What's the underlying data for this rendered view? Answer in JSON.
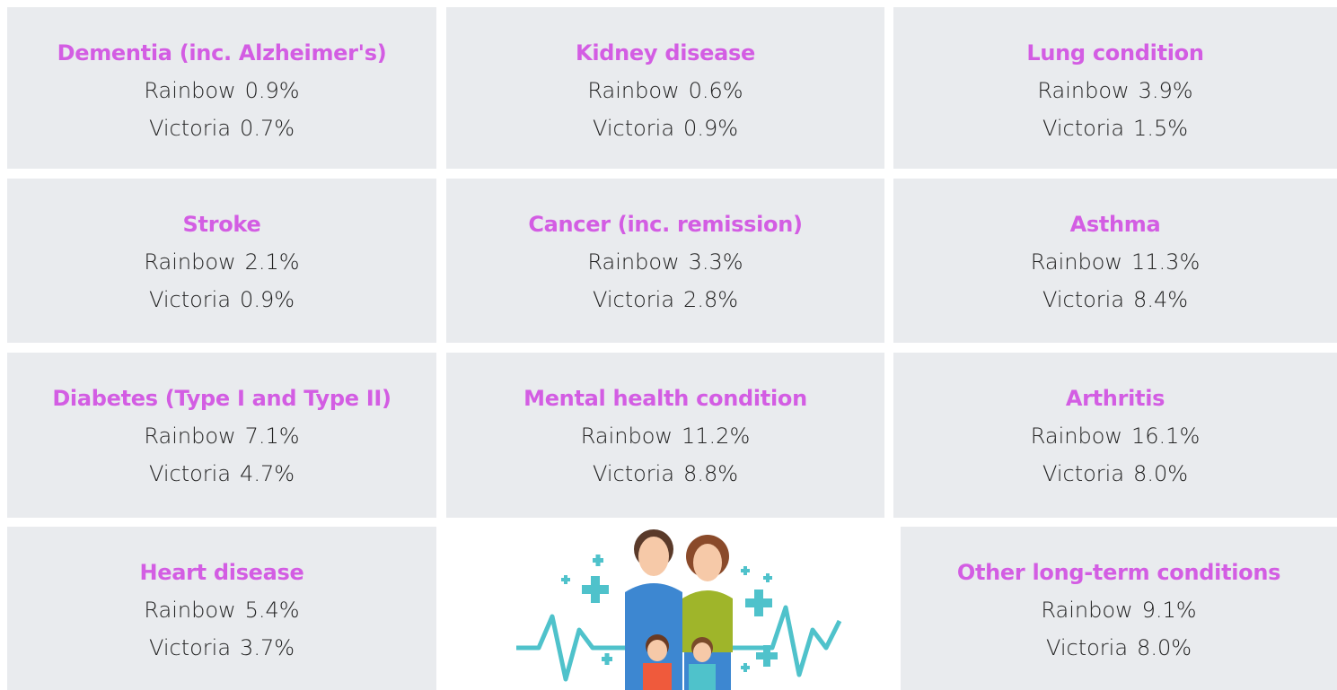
{
  "cards": [
    {
      "title": "Dementia (inc. Alzheimer's)",
      "rows": [
        {
          "label": "Rainbow",
          "value": "0.9%"
        },
        {
          "label": "Victoria",
          "value": "0.7%"
        }
      ]
    },
    {
      "title": "Kidney disease",
      "rows": [
        {
          "label": "Rainbow",
          "value": "0.6%"
        },
        {
          "label": "Victoria",
          "value": "0.9%"
        }
      ]
    },
    {
      "title": "Lung condition",
      "rows": [
        {
          "label": "Rainbow",
          "value": "3.9%"
        },
        {
          "label": "Victoria",
          "value": "1.5%"
        }
      ]
    },
    {
      "title": "Stroke",
      "rows": [
        {
          "label": "Rainbow",
          "value": "2.1%"
        },
        {
          "label": "Victoria",
          "value": "0.9%"
        }
      ]
    },
    {
      "title": "Cancer (inc. remission)",
      "rows": [
        {
          "label": "Rainbow",
          "value": "3.3%"
        },
        {
          "label": "Victoria",
          "value": "2.8%"
        }
      ]
    },
    {
      "title": "Asthma",
      "rows": [
        {
          "label": "Rainbow",
          "value": "11.3%"
        },
        {
          "label": "Victoria",
          "value": "8.4%"
        }
      ]
    },
    {
      "title": "Diabetes (Type I and Type II)",
      "rows": [
        {
          "label": "Rainbow",
          "value": "7.1%"
        },
        {
          "label": "Victoria",
          "value": "4.7%"
        }
      ]
    },
    {
      "title": "Mental health condition",
      "rows": [
        {
          "label": "Rainbow",
          "value": "11.2%"
        },
        {
          "label": "Victoria",
          "value": "8.8%"
        }
      ]
    },
    {
      "title": "Arthritis",
      "rows": [
        {
          "label": "Rainbow",
          "value": "16.1%"
        },
        {
          "label": "Victoria",
          "value": "8.0%"
        }
      ]
    },
    {
      "title": "Heart disease",
      "rows": [
        {
          "label": "Rainbow",
          "value": "5.4%"
        },
        {
          "label": "Victoria",
          "value": "3.7%"
        }
      ]
    },
    {
      "title": "Other long-term conditions",
      "rows": [
        {
          "label": "Rainbow",
          "value": "9.1%"
        },
        {
          "label": "Victoria",
          "value": "8.0%"
        }
      ]
    }
  ]
}
